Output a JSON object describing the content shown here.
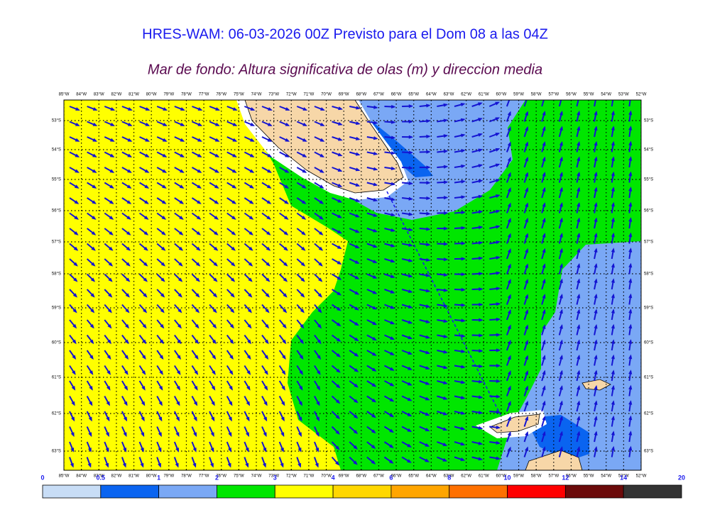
{
  "header": {
    "title": "HRES-WAM: 06-03-2026 00Z Previsto para el Dom 08 a las 04Z",
    "subtitle": "Mar de fondo: Altura significativa de olas (m) y direccion media"
  },
  "map": {
    "longitudes": [
      "85°W",
      "84°W",
      "83°W",
      "82°W",
      "81°W",
      "80°W",
      "79°W",
      "78°W",
      "77°W",
      "76°W",
      "75°W",
      "74°W",
      "73°W",
      "72°W",
      "71°W",
      "70°W",
      "69°W",
      "68°W",
      "67°W",
      "66°W",
      "65°W",
      "64°W",
      "63°W",
      "62°W",
      "61°W",
      "60°W",
      "59°W",
      "58°W",
      "57°W",
      "56°W",
      "55°W",
      "54°W",
      "53°W",
      "52°W"
    ],
    "latitudes": [
      "53°S",
      "54°S",
      "55°S",
      "56°S",
      "57°S",
      "58°S",
      "59°S",
      "60°S",
      "61°S",
      "62°S",
      "63°S"
    ]
  },
  "colorbar": {
    "labels": [
      0,
      0.5,
      1,
      2,
      3,
      4,
      6,
      8,
      10,
      12,
      14,
      20
    ],
    "colors": [
      "#c8ddf6",
      "#0a64f0",
      "#7aa8f5",
      "#00e600",
      "#ffff00",
      "#ffd700",
      "#ffa500",
      "#ff7000",
      "#ff0000",
      "#6b0a0a",
      "#333333"
    ]
  }
}
